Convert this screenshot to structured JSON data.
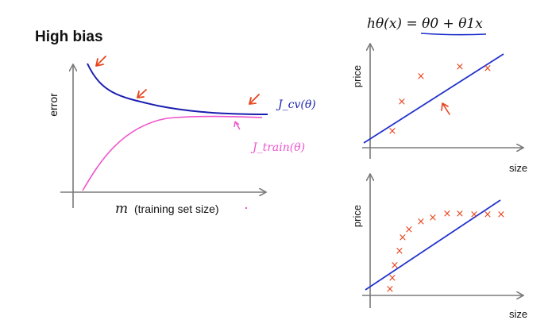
{
  "title": "High bias",
  "learning_curve": {
    "y_label": "error",
    "x_var": "m",
    "x_label": "(training set size)",
    "cv_label": "J_cv(θ)",
    "train_label": "J_train(θ)",
    "colors": {
      "cv": "#1a1fb0",
      "train": "#ee55cc",
      "annotation": "#e8451e"
    }
  },
  "top_plot": {
    "formula": "hθ(x) = θ0 + θ1x",
    "y_label": "price",
    "x_label": "size",
    "point_marker": "×",
    "colors": {
      "line": "#2233cc",
      "points": "#e8451e",
      "underline": "#2233cc"
    }
  },
  "bottom_plot": {
    "y_label": "price",
    "x_label": "size",
    "point_marker": "×",
    "colors": {
      "line": "#2233cc",
      "points": "#e8451e"
    }
  }
}
